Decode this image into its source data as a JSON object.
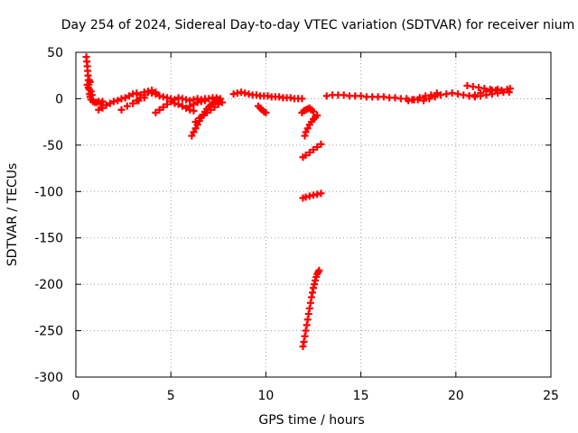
{
  "chart_data": {
    "type": "scatter",
    "title": "Day 254 of 2024, Sidereal Day-to-day VTEC variation (SDTVAR) for receiver nium",
    "xlabel": "GPS time / hours",
    "ylabel": "SDTVAR / TECUs",
    "xlim": [
      0,
      25
    ],
    "ylim": [
      -300,
      50
    ],
    "x_ticks": [
      0,
      5,
      10,
      15,
      20,
      25
    ],
    "x_tick_labels": [
      "0",
      "5",
      "10",
      "15",
      "20",
      "25"
    ],
    "y_ticks": [
      50,
      0,
      -50,
      -100,
      -150,
      -200,
      -250,
      -300
    ],
    "y_tick_labels": [
      "50",
      "0",
      "-50",
      "-100",
      "-150",
      "-200",
      "-250",
      "-300"
    ],
    "grid": true,
    "marker": "plus",
    "marker_color": "#ff0000",
    "series": [
      {
        "values": [
          [
            0.55,
            45
          ],
          [
            0.58,
            40
          ],
          [
            0.6,
            35
          ],
          [
            0.62,
            30
          ],
          [
            0.64,
            25
          ],
          [
            0.66,
            20
          ],
          [
            0.68,
            15
          ],
          [
            0.7,
            10
          ],
          [
            0.72,
            5
          ],
          [
            0.75,
            2
          ],
          [
            0.8,
            -1
          ],
          [
            0.9,
            -3
          ],
          [
            1.0,
            -4
          ],
          [
            1.1,
            -4
          ],
          [
            1.2,
            -3
          ],
          [
            1.3,
            -5
          ],
          [
            1.4,
            -3
          ],
          [
            0.6,
            15
          ],
          [
            0.65,
            12
          ],
          [
            0.7,
            20
          ],
          [
            0.75,
            18
          ],
          [
            0.8,
            8
          ],
          [
            0.85,
            4
          ],
          [
            1.2,
            -12
          ],
          [
            1.4,
            -10
          ],
          [
            1.6,
            -7
          ],
          [
            1.8,
            -5
          ],
          [
            2.0,
            -3
          ],
          [
            2.2,
            -2
          ],
          [
            2.4,
            0
          ],
          [
            2.6,
            1
          ],
          [
            2.8,
            3
          ],
          [
            3.0,
            5
          ],
          [
            3.2,
            6
          ],
          [
            3.4,
            4
          ],
          [
            3.6,
            7
          ],
          [
            3.8,
            8
          ],
          [
            4.0,
            6
          ],
          [
            4.2,
            5
          ],
          [
            4.4,
            3
          ],
          [
            4.6,
            2
          ],
          [
            4.8,
            1
          ],
          [
            5.0,
            0
          ],
          [
            2.4,
            -12
          ],
          [
            2.7,
            -8
          ],
          [
            3.0,
            -5
          ],
          [
            3.3,
            -2
          ],
          [
            3.6,
            1
          ],
          [
            3.0,
            -5
          ],
          [
            3.2,
            -2
          ],
          [
            3.4,
            1
          ],
          [
            3.6,
            4
          ],
          [
            3.8,
            7
          ],
          [
            4.0,
            9
          ],
          [
            4.2,
            7
          ],
          [
            4.2,
            -15
          ],
          [
            4.4,
            -12
          ],
          [
            4.6,
            -9
          ],
          [
            4.8,
            -6
          ],
          [
            5.0,
            -3
          ],
          [
            5.2,
            -1
          ],
          [
            5.4,
            1
          ],
          [
            5.6,
            0
          ],
          [
            5.8,
            -1
          ],
          [
            6.0,
            -2
          ],
          [
            6.2,
            -1
          ],
          [
            6.4,
            0
          ],
          [
            6.6,
            -1
          ],
          [
            6.8,
            0
          ],
          [
            7.0,
            0
          ],
          [
            7.2,
            1
          ],
          [
            7.4,
            1
          ],
          [
            7.6,
            0
          ],
          [
            5.2,
            -5
          ],
          [
            5.4,
            -6
          ],
          [
            5.6,
            -8
          ],
          [
            5.8,
            -10
          ],
          [
            6.0,
            -12
          ],
          [
            6.2,
            -13
          ],
          [
            6.1,
            -40
          ],
          [
            6.2,
            -36
          ],
          [
            6.3,
            -32
          ],
          [
            6.4,
            -28
          ],
          [
            6.5,
            -24
          ],
          [
            6.6,
            -20
          ],
          [
            6.7,
            -17
          ],
          [
            6.8,
            -14
          ],
          [
            6.9,
            -11
          ],
          [
            7.0,
            -9
          ],
          [
            7.1,
            -7
          ],
          [
            7.2,
            -5
          ],
          [
            7.3,
            -3
          ],
          [
            7.4,
            -2
          ],
          [
            7.5,
            -1
          ],
          [
            6.3,
            -25
          ],
          [
            6.5,
            -21
          ],
          [
            6.7,
            -18
          ],
          [
            6.9,
            -15
          ],
          [
            7.1,
            -12
          ],
          [
            7.3,
            -9
          ],
          [
            7.5,
            -6
          ],
          [
            7.7,
            -4
          ],
          [
            6.0,
            -8
          ],
          [
            6.2,
            -6
          ],
          [
            6.4,
            -4
          ],
          [
            6.6,
            -3
          ],
          [
            6.8,
            -2
          ],
          [
            8.3,
            5
          ],
          [
            8.5,
            6
          ],
          [
            8.7,
            7
          ],
          [
            8.9,
            6
          ],
          [
            9.1,
            5
          ],
          [
            9.3,
            4
          ],
          [
            9.5,
            4
          ],
          [
            9.7,
            3
          ],
          [
            9.9,
            3
          ],
          [
            10.1,
            3
          ],
          [
            10.3,
            2
          ],
          [
            10.5,
            2
          ],
          [
            10.7,
            2
          ],
          [
            10.9,
            1
          ],
          [
            11.1,
            1
          ],
          [
            11.3,
            1
          ],
          [
            11.5,
            0
          ],
          [
            11.7,
            0
          ],
          [
            11.9,
            0
          ],
          [
            9.6,
            -8
          ],
          [
            9.7,
            -10
          ],
          [
            9.8,
            -12
          ],
          [
            9.9,
            -14
          ],
          [
            10.0,
            -15
          ],
          [
            11.95,
            -267
          ],
          [
            12.0,
            -262
          ],
          [
            12.05,
            -256
          ],
          [
            12.1,
            -250
          ],
          [
            12.15,
            -244
          ],
          [
            12.2,
            -238
          ],
          [
            12.25,
            -232
          ],
          [
            12.3,
            -226
          ],
          [
            12.35,
            -220
          ],
          [
            12.4,
            -214
          ],
          [
            12.45,
            -209
          ],
          [
            12.5,
            -204
          ],
          [
            12.55,
            -200
          ],
          [
            12.6,
            -196
          ],
          [
            12.65,
            -192
          ],
          [
            12.7,
            -189
          ],
          [
            12.75,
            -187
          ],
          [
            12.8,
            -185
          ],
          [
            11.95,
            -107
          ],
          [
            12.1,
            -106
          ],
          [
            12.3,
            -105
          ],
          [
            12.5,
            -104
          ],
          [
            12.7,
            -103
          ],
          [
            12.9,
            -102
          ],
          [
            11.95,
            -63
          ],
          [
            12.1,
            -61
          ],
          [
            12.3,
            -58
          ],
          [
            12.5,
            -55
          ],
          [
            12.7,
            -52
          ],
          [
            12.9,
            -49
          ],
          [
            12.05,
            -40
          ],
          [
            12.1,
            -36
          ],
          [
            12.2,
            -32
          ],
          [
            12.3,
            -28
          ],
          [
            12.4,
            -25
          ],
          [
            12.5,
            -22
          ],
          [
            12.6,
            -20
          ],
          [
            12.7,
            -18
          ],
          [
            11.9,
            -15
          ],
          [
            12.0,
            -13
          ],
          [
            12.1,
            -12
          ],
          [
            12.2,
            -11
          ],
          [
            12.3,
            -10
          ],
          [
            12.4,
            -12
          ],
          [
            12.5,
            -14
          ],
          [
            13.2,
            3
          ],
          [
            13.5,
            4
          ],
          [
            13.8,
            4
          ],
          [
            14.1,
            4
          ],
          [
            14.4,
            3
          ],
          [
            14.7,
            3
          ],
          [
            15.0,
            3
          ],
          [
            15.3,
            2
          ],
          [
            15.6,
            2
          ],
          [
            15.9,
            2
          ],
          [
            16.2,
            2
          ],
          [
            16.5,
            1
          ],
          [
            16.8,
            1
          ],
          [
            17.1,
            0
          ],
          [
            17.4,
            0
          ],
          [
            17.7,
            -1
          ],
          [
            18.0,
            -1
          ],
          [
            18.3,
            -2
          ],
          [
            18.6,
            0
          ],
          [
            18.9,
            2
          ],
          [
            19.2,
            4
          ],
          [
            19.5,
            5
          ],
          [
            19.8,
            6
          ],
          [
            20.1,
            5
          ],
          [
            20.4,
            4
          ],
          [
            20.7,
            3
          ],
          [
            21.0,
            2
          ],
          [
            21.3,
            3
          ],
          [
            21.6,
            4
          ],
          [
            21.9,
            5
          ],
          [
            22.2,
            6
          ],
          [
            22.5,
            7
          ],
          [
            22.8,
            7
          ],
          [
            17.5,
            -2
          ],
          [
            17.8,
            -1
          ],
          [
            18.1,
            1
          ],
          [
            18.4,
            3
          ],
          [
            18.7,
            4
          ],
          [
            19.0,
            6
          ],
          [
            20.6,
            14
          ],
          [
            20.9,
            13
          ],
          [
            21.2,
            12
          ],
          [
            21.5,
            11
          ],
          [
            21.8,
            10
          ],
          [
            22.1,
            9
          ],
          [
            22.4,
            9
          ],
          [
            22.7,
            10
          ],
          [
            22.85,
            11
          ],
          [
            20.7,
            3
          ],
          [
            21.0,
            4
          ],
          [
            21.3,
            6
          ],
          [
            21.6,
            8
          ],
          [
            21.9,
            9
          ],
          [
            22.2,
            10
          ]
        ]
      }
    ]
  }
}
